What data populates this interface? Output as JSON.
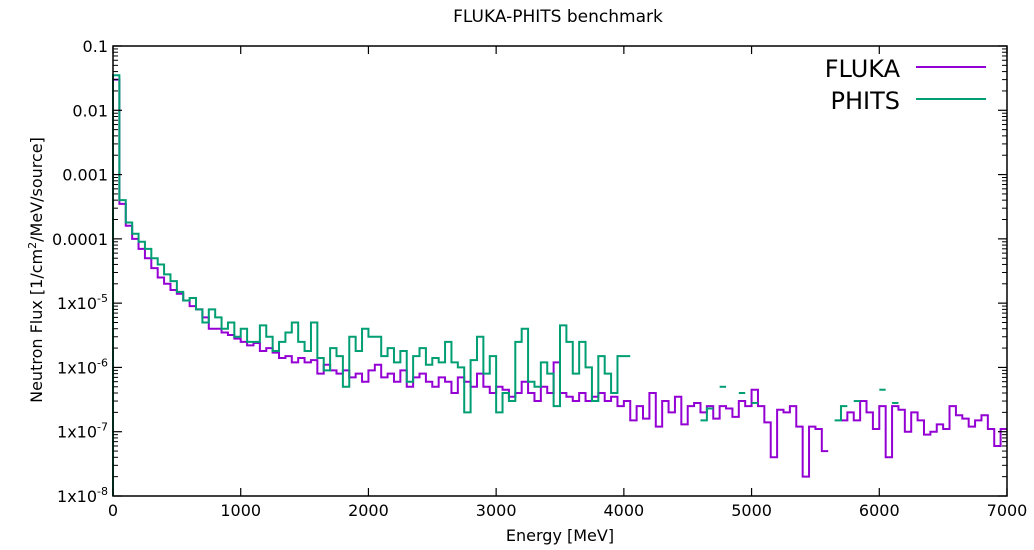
{
  "chart_data": {
    "type": "line",
    "style": "step-histogram",
    "title": "FLUKA-PHITS benchmark",
    "xlabel": "Energy [MeV]",
    "ylabel_parts": [
      "Neutron Flux [1/cm",
      "2",
      "/MeV/source]"
    ],
    "xlim": [
      0,
      7000
    ],
    "ylim": [
      1e-08,
      0.1
    ],
    "yscale": "log",
    "grid": false,
    "legend_position": "top-right",
    "x_ticks": [
      "0",
      "1000",
      "2000",
      "3000",
      "4000",
      "5000",
      "6000",
      "7000"
    ],
    "y_ticks": [
      {
        "v": 0.1,
        "base": "0.1",
        "exp": ""
      },
      {
        "v": 0.01,
        "base": "0.01",
        "exp": ""
      },
      {
        "v": 0.001,
        "base": "0.001",
        "exp": ""
      },
      {
        "v": 0.0001,
        "base": "0.0001",
        "exp": ""
      },
      {
        "v": 1e-05,
        "base": "1x10",
        "exp": "-5"
      },
      {
        "v": 1e-06,
        "base": "1x10",
        "exp": "-6"
      },
      {
        "v": 1e-07,
        "base": "1x10",
        "exp": "-7"
      },
      {
        "v": 1e-08,
        "base": "1x10",
        "exp": "-8"
      }
    ],
    "bin_width": 50,
    "series": [
      {
        "name": "FLUKA",
        "color": "#9400d3",
        "values": [
          0.03,
          0.00035,
          0.00016,
          0.0001,
          7e-05,
          5e-05,
          3.5e-05,
          2.5e-05,
          2e-05,
          1.6e-05,
          1.4e-05,
          1.1e-05,
          9e-06,
          8e-06,
          6e-06,
          4e-06,
          4e-06,
          3.5e-06,
          3.2e-06,
          2.8e-06,
          2.5e-06,
          2.2e-06,
          2.4e-06,
          1.8e-06,
          2e-06,
          1.7e-06,
          1.4e-06,
          1.5e-06,
          1.2e-06,
          1.4e-06,
          1.2e-06,
          1.3e-06,
          8e-07,
          1.1e-06,
          9e-07,
          8e-07,
          9e-07,
          7e-07,
          8e-07,
          6e-07,
          9e-07,
          1.1e-06,
          7e-07,
          8e-07,
          6e-07,
          9e-07,
          5e-07,
          7e-07,
          8e-07,
          6e-07,
          5e-07,
          7e-07,
          6e-07,
          4e-07,
          7e-07,
          6e-07,
          5e-07,
          8e-07,
          5e-07,
          4e-07,
          5e-07,
          4.5e-07,
          3.5e-07,
          4e-07,
          6e-07,
          4e-07,
          3e-07,
          5e-07,
          4e-07,
          1.2e-06,
          4e-07,
          3.5e-07,
          3e-07,
          4e-07,
          3e-07,
          3.5e-07,
          4e-07,
          3e-07,
          3.5e-07,
          2.5e-07,
          3e-07,
          1.5e-07,
          2.5e-07,
          1.6e-07,
          4e-07,
          1.2e-07,
          3e-07,
          2e-07,
          3.5e-07,
          1.3e-07,
          2.5e-07,
          2.8e-07,
          2e-07,
          2.5e-07,
          1.6e-07,
          2.5e-07,
          2.3e-07,
          1.7e-07,
          3e-07,
          2.5e-07,
          4.5e-07,
          2.5e-07,
          1.4e-07,
          4e-08,
          2.2e-07,
          2e-07,
          2.5e-07,
          1.2e-07,
          2e-08,
          1.2e-07,
          1.1e-07,
          5e-08,
          null,
          null,
          1.5e-07,
          2e-07,
          1.5e-07,
          3e-07,
          2e-07,
          1.1e-07,
          2.5e-07,
          4e-08,
          2.5e-07,
          2.2e-07,
          1e-07,
          2e-07,
          1.5e-07,
          9e-08,
          1e-07,
          1.3e-07,
          1.1e-07,
          2.5e-07,
          1.8e-07,
          1.6e-07,
          1.2e-07,
          1.5e-07,
          1.8e-07,
          1.1e-07,
          6e-08,
          1.1e-07
        ]
      },
      {
        "name": "PHITS",
        "color": "#009e73",
        "values": [
          0.035,
          0.0004,
          0.00018,
          0.00012,
          9e-05,
          7e-05,
          5e-05,
          4e-05,
          2.8e-05,
          2.2e-05,
          1.5e-05,
          1.1e-05,
          1.2e-05,
          8e-06,
          5e-06,
          8e-06,
          6e-06,
          4e-06,
          5e-06,
          3e-06,
          4e-06,
          2.5e-06,
          2.5e-06,
          4.5e-06,
          3e-06,
          1.8e-06,
          2.5e-06,
          3.5e-06,
          5e-06,
          2.5e-06,
          1.8e-06,
          5e-06,
          1.4e-06,
          9e-07,
          2e-06,
          1.5e-06,
          5e-07,
          3e-06,
          1.8e-06,
          4e-06,
          3e-06,
          3e-06,
          1.5e-06,
          2e-06,
          1.2e-06,
          1.8e-06,
          6e-07,
          1.5e-06,
          2e-06,
          1.1e-06,
          1.4e-06,
          1.2e-06,
          2.5e-06,
          1.2e-06,
          1e-06,
          2e-07,
          1.3e-06,
          3e-06,
          8e-07,
          1.5e-06,
          2e-07,
          4e-07,
          3e-07,
          2.5e-06,
          4e-06,
          6e-07,
          5e-07,
          1.2e-06,
          8e-07,
          2.5e-07,
          4.5e-06,
          2.5e-06,
          8e-07,
          2.5e-06,
          1e-06,
          3e-07,
          1.5e-06,
          8e-07,
          4e-07,
          1.5e-06,
          1.5e-06,
          null,
          null,
          null,
          null,
          null,
          null,
          null,
          null,
          null,
          null,
          null,
          1.5e-07,
          2.3e-07,
          null,
          5e-07,
          null,
          null,
          4e-07,
          null,
          2.8e-07,
          null,
          null,
          null,
          null,
          null,
          null,
          null,
          null,
          null,
          null,
          null,
          null,
          1.5e-07,
          2.5e-07,
          null,
          3e-07,
          null,
          null,
          null,
          4.5e-07,
          null,
          2.8e-07,
          null,
          null,
          null,
          null,
          null,
          null,
          null,
          null,
          null,
          null,
          null,
          null,
          null,
          null,
          null,
          null,
          null
        ]
      }
    ]
  }
}
